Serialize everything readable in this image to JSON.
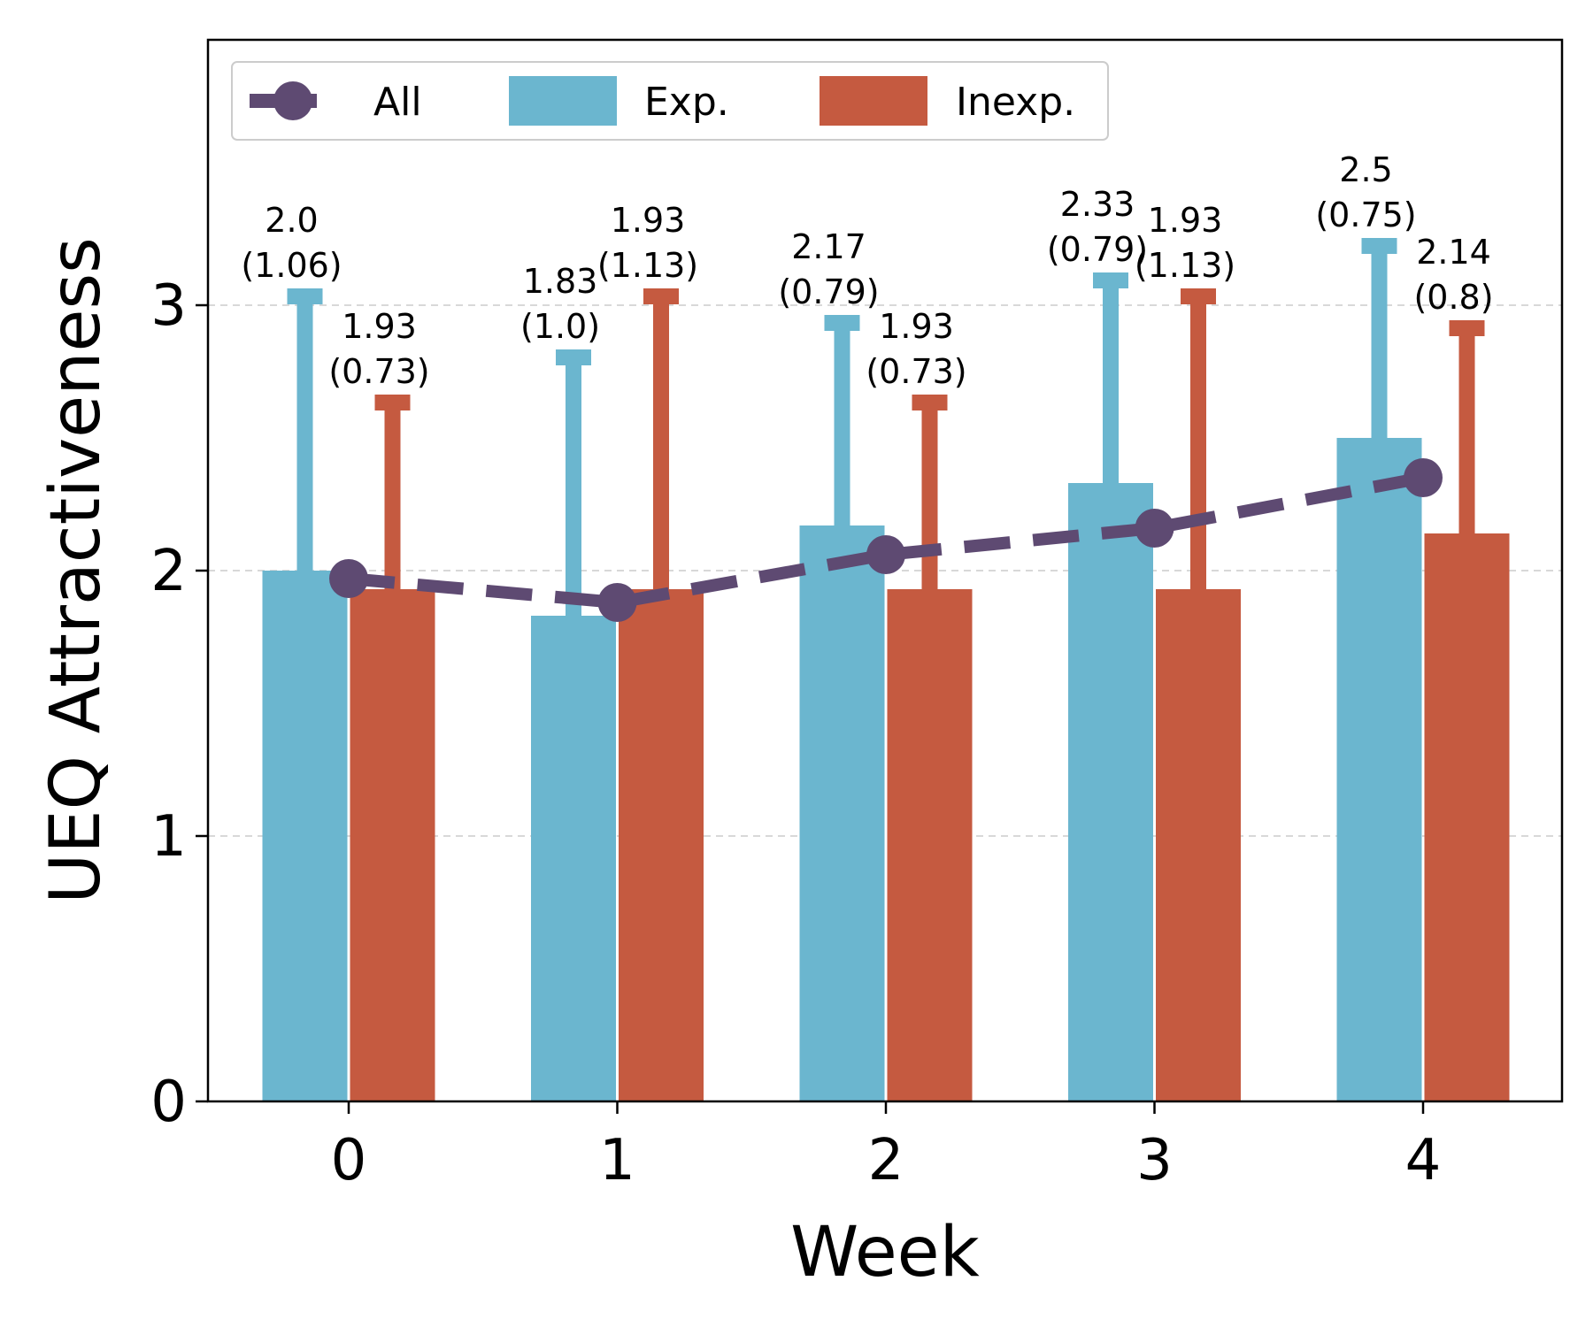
{
  "chart_data": {
    "type": "bar",
    "title": "",
    "xlabel": "Week",
    "ylabel": "UEQ Attractiveness",
    "categories": [
      "0",
      "1",
      "2",
      "3",
      "4"
    ],
    "yticks": [
      "0",
      "1",
      "2",
      "3"
    ],
    "ylim": [
      0,
      4
    ],
    "grid": "horizontal dashed",
    "legend_position": "top-left",
    "series": [
      {
        "name": "Exp.",
        "kind": "bar",
        "color": "#6bb6cf",
        "values": [
          2.0,
          1.83,
          2.17,
          2.33,
          2.5
        ],
        "errors": [
          1.06,
          1.0,
          0.79,
          0.79,
          0.75
        ],
        "labels": [
          {
            "mean": "2.0",
            "sd": "(1.06)"
          },
          {
            "mean": "1.83",
            "sd": "(1.0)"
          },
          {
            "mean": "2.17",
            "sd": "(0.79)"
          },
          {
            "mean": "2.33",
            "sd": "(0.79)"
          },
          {
            "mean": "2.5",
            "sd": "(0.75)"
          }
        ]
      },
      {
        "name": "Inexp.",
        "kind": "bar",
        "color": "#c55a40",
        "values": [
          1.93,
          1.93,
          1.93,
          1.93,
          2.14
        ],
        "errors": [
          0.73,
          1.13,
          0.73,
          1.13,
          0.8
        ],
        "labels": [
          {
            "mean": "1.93",
            "sd": "(0.73)"
          },
          {
            "mean": "1.93",
            "sd": "(1.13)"
          },
          {
            "mean": "1.93",
            "sd": "(0.73)"
          },
          {
            "mean": "1.93",
            "sd": "(1.13)"
          },
          {
            "mean": "2.14",
            "sd": "(0.8)"
          }
        ]
      },
      {
        "name": "All",
        "kind": "line",
        "style": "dashed",
        "marker": "circle",
        "color": "#5e4a72",
        "values": [
          1.97,
          1.88,
          2.06,
          2.16,
          2.35
        ]
      }
    ]
  }
}
